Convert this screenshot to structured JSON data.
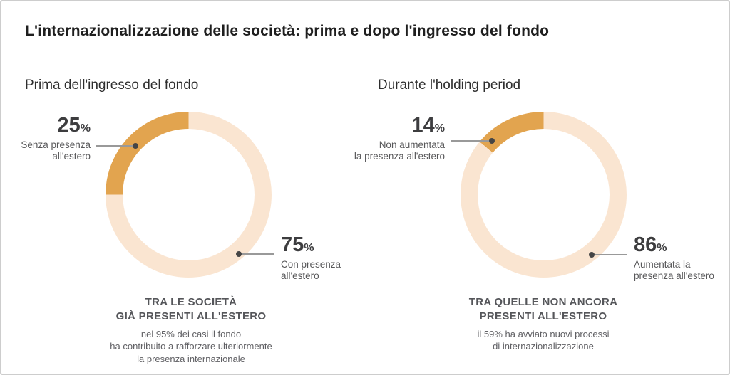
{
  "page": {
    "title": "L'internazionalizzazione delle società: prima e dopo l'ingresso del fondo",
    "colors": {
      "accent_orange": "#E2A44F",
      "track_peach": "#FAE5D1",
      "title_text": "#1F1F1F",
      "heading_text": "#2E2E2E",
      "value_text": "#3D3D3F",
      "caption_text": "#58585A",
      "footer_title_text": "#55565A",
      "footer_sub_text": "#606064",
      "leader_line": "#999999",
      "leader_dot": "#454545",
      "card_border": "#CDCDCD",
      "divider": "#DDDDDD"
    }
  },
  "panels": [
    {
      "heading": "Prima dell'ingresso del fondo",
      "donut": {
        "highlight_pct": 25,
        "rest_pct": 75
      },
      "label_left": {
        "value": "25",
        "percent_sign": "%",
        "caption": "Senza presenza\nall'estero"
      },
      "label_right": {
        "value": "75",
        "percent_sign": "%",
        "caption": "Con presenza\nall'estero"
      },
      "footer_title": "TRA LE SOCIETÀ\nGIÀ PRESENTI ALL'ESTERO",
      "footer_sub": "nel 95% dei casi il fondo\nha contribuito a rafforzare ulteriormente\nla presenza internazionale"
    },
    {
      "heading": "Durante l'holding period",
      "donut": {
        "highlight_pct": 14,
        "rest_pct": 86
      },
      "label_left": {
        "value": "14",
        "percent_sign": "%",
        "caption": "Non aumentata\nla presenza all'estero"
      },
      "label_right": {
        "value": "86",
        "percent_sign": "%",
        "caption": "Aumentata la\npresenza all'estero"
      },
      "footer_title": "TRA QUELLE NON ANCORA\nPRESENTI ALL'ESTERO",
      "footer_sub": "il 59% ha avviato nuovi processi\ndi internazionalizzazione"
    }
  ],
  "chart_data": [
    {
      "type": "pie",
      "donut": true,
      "title": "Prima dell'ingresso del fondo",
      "labels": [
        "Senza presenza all'estero",
        "Con presenza all'estero"
      ],
      "values": [
        25,
        75
      ],
      "colors": [
        "#E2A44F",
        "#FAE5D1"
      ],
      "start": "top",
      "direction": "counterclockwise-highlight",
      "annotations": [
        "TRA LE SOCIETÀ GIÀ PRESENTI ALL'ESTERO",
        "nel 95% dei casi il fondo ha contribuito a rafforzare ulteriormente la presenza internazionale"
      ]
    },
    {
      "type": "pie",
      "donut": true,
      "title": "Durante l'holding period",
      "labels": [
        "Non aumentata la presenza all'estero",
        "Aumentata la presenza all'estero"
      ],
      "values": [
        14,
        86
      ],
      "colors": [
        "#E2A44F",
        "#FAE5D1"
      ],
      "start": "top",
      "direction": "counterclockwise-highlight",
      "annotations": [
        "TRA QUELLE NON ANCORA PRESENTI ALL'ESTERO",
        "il 59% ha avviato nuovi processi di internazionalizzazione"
      ]
    }
  ]
}
